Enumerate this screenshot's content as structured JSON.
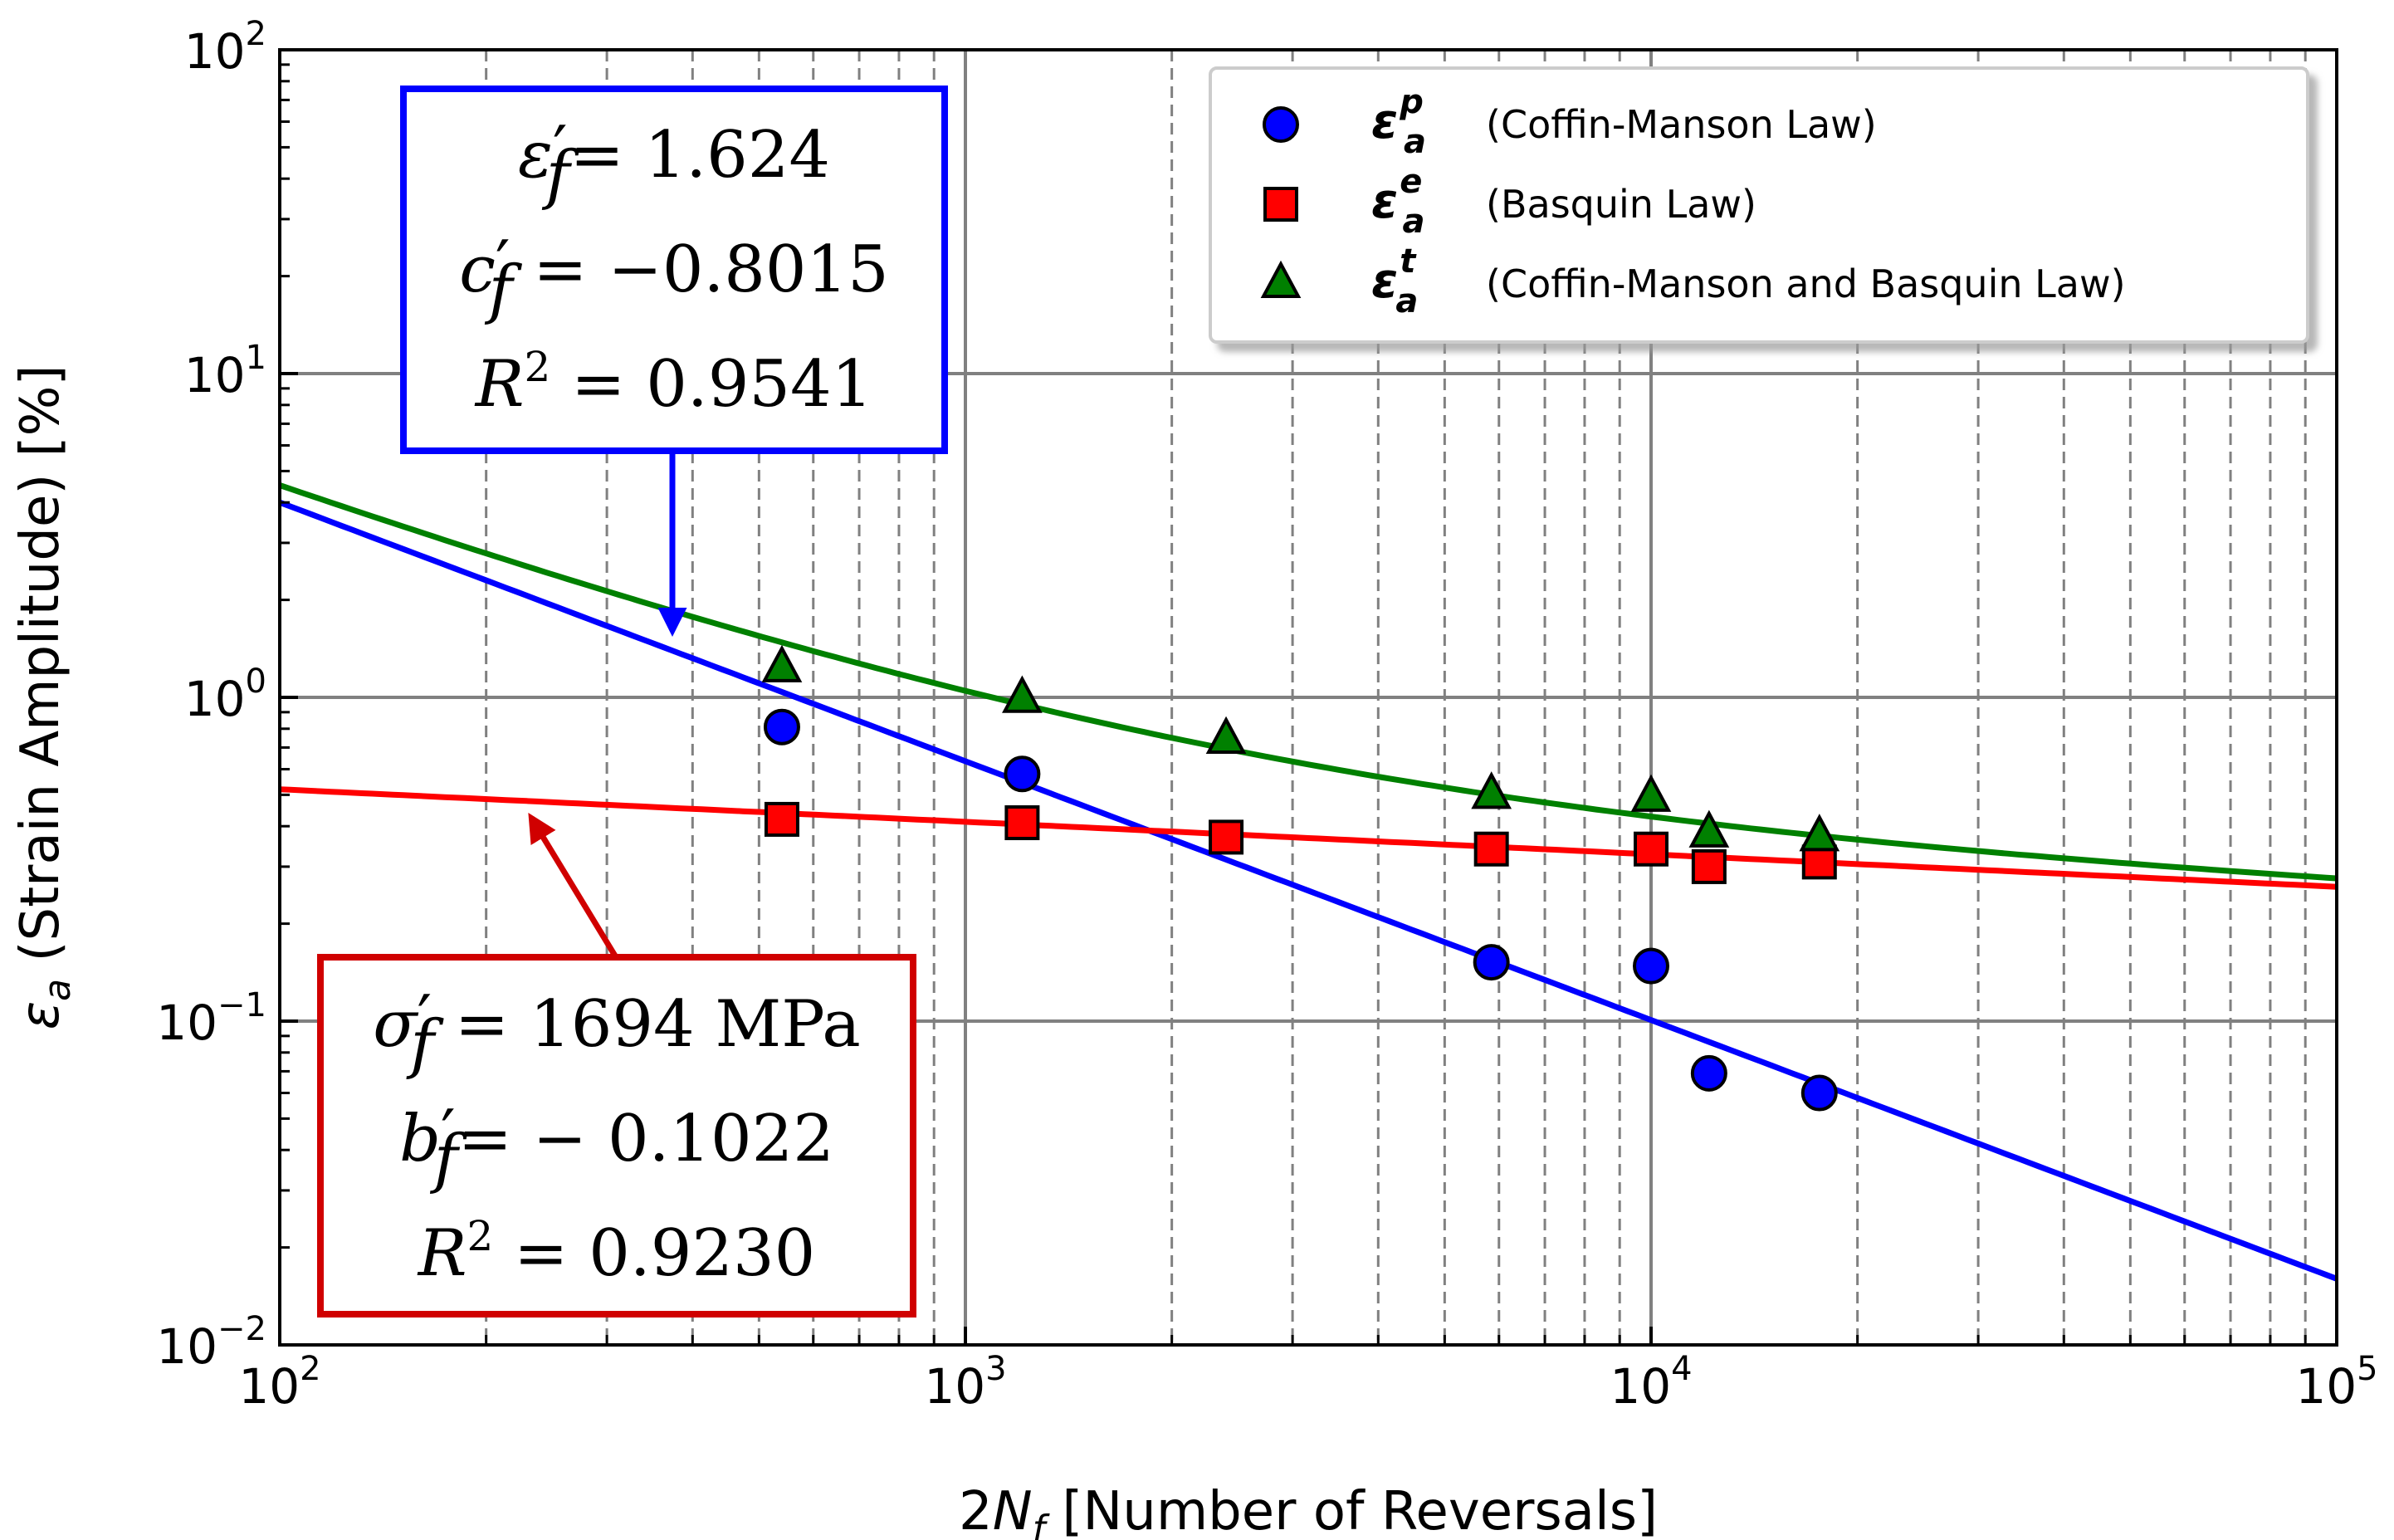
{
  "chart_data": {
    "type": "scatter",
    "title": "",
    "xlabel": "2N_f [Number of Reversals]",
    "xlabel_parts": {
      "pre": "2",
      "var": "N",
      "sub": "f",
      "post": " [Number of Reversals]"
    },
    "ylabel": "ε_a (Strain Amplitude) [%]",
    "ylabel_parts": {
      "var": "ε",
      "sub": "a",
      "post": " (Strain Amplitude) [%]"
    },
    "xscale": "log",
    "yscale": "log",
    "xlim": [
      100,
      100000
    ],
    "ylim": [
      0.01,
      100
    ],
    "x_ticks": [
      {
        "base": "10",
        "exp": "2"
      },
      {
        "base": "10",
        "exp": "3"
      },
      {
        "base": "10",
        "exp": "4"
      },
      {
        "base": "10",
        "exp": "5"
      }
    ],
    "y_ticks": [
      {
        "base": "10",
        "exp": "−2"
      },
      {
        "base": "10",
        "exp": "−1"
      },
      {
        "base": "10",
        "exp": "0"
      },
      {
        "base": "10",
        "exp": "1"
      },
      {
        "base": "10",
        "exp": "2"
      }
    ],
    "grid": "major solid, minor dashed",
    "legend_position": "top-right",
    "series": [
      {
        "name": "ε_a^p",
        "symbol": "ε",
        "sub": "a",
        "sup": "p",
        "label": "(Coffin-Manson Law)",
        "marker": "circle",
        "color": "#0000ff",
        "x": [
          540,
          1210,
          5850,
          10000,
          12150,
          17600
        ],
        "y": [
          0.81,
          0.58,
          0.152,
          0.148,
          0.069,
          0.06
        ],
        "fit": {
          "color": "#0000ff",
          "x": [
            100,
            100000
          ],
          "y": [
            4.0,
            0.016
          ]
        }
      },
      {
        "name": "ε_a^e",
        "symbol": "ε",
        "sub": "a",
        "sup": "e",
        "label": "(Basquin Law)",
        "marker": "square",
        "color": "#ff0000",
        "x": [
          540,
          1210,
          2400,
          5850,
          10000,
          12150,
          17600
        ],
        "y": [
          0.42,
          0.41,
          0.37,
          0.34,
          0.34,
          0.3,
          0.31
        ],
        "fit": {
          "color": "#ff0000",
          "x": [
            100,
            100000
          ],
          "y": [
            0.52,
            0.26
          ]
        }
      },
      {
        "name": "ε_a^t",
        "symbol": "ε",
        "sub": "a",
        "sup": "t",
        "label": "(Coffin-Manson and Basquin Law)",
        "marker": "triangle",
        "color": "#008000",
        "x": [
          540,
          1210,
          2400,
          5850,
          10000,
          12150,
          17600
        ],
        "y": [
          1.23,
          0.99,
          0.74,
          0.5,
          0.49,
          0.38,
          0.37
        ],
        "fit": {
          "color": "#008000",
          "type": "sum_of_fits"
        }
      }
    ],
    "annotations": [
      {
        "color": "#0000ff",
        "points_to": "blue fit near 2N_f ≈ 380",
        "lines": [
          {
            "sym": "ε",
            "prime": "′",
            "sub": "f",
            "rel": "= 1.624"
          },
          {
            "sym": "c",
            "prime": "′",
            "sub": "f",
            "rel": " = −0.8015"
          },
          {
            "sym": "R",
            "sup": "2",
            "rel": " = 0.9541"
          }
        ]
      },
      {
        "color": "#d00000",
        "points_to": "red fit near 2N_f ≈ 230",
        "lines": [
          {
            "sym": "σ",
            "prime": "′",
            "sub": "f",
            "rel": " = 1694 MPa"
          },
          {
            "sym": "b",
            "prime": "′",
            "sub": "f",
            "rel": "= − 0.1022"
          },
          {
            "sym": "R",
            "sup": "2",
            "rel": " = 0.9230"
          }
        ]
      }
    ]
  }
}
